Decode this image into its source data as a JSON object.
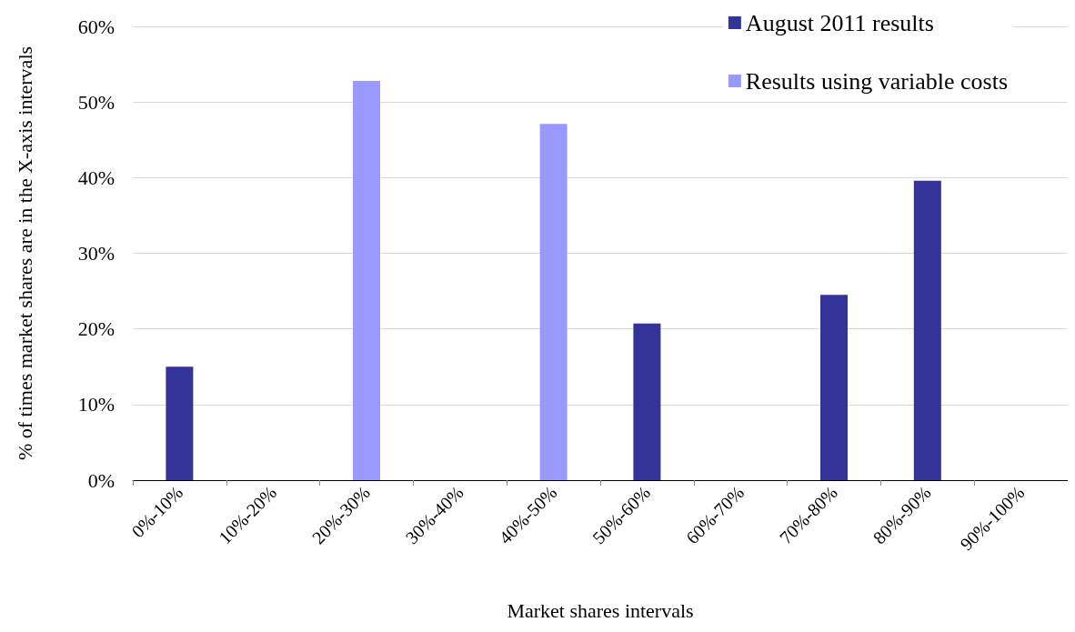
{
  "chart_data": {
    "type": "bar",
    "xlabel": "Market shares intervals",
    "ylabel": "% of times market shares are in the X-axis intervals",
    "categories": [
      "0%-10%",
      "10%-20%",
      "20%-30%",
      "30%-40%",
      "40%-50%",
      "50%-60%",
      "60%-70%",
      "70%-80%",
      "80%-90%",
      "90%-100%"
    ],
    "series": [
      {
        "name": "August 2011 results",
        "color": "#333399",
        "values": [
          15,
          null,
          null,
          null,
          null,
          20.7,
          null,
          24.5,
          39.6,
          null
        ]
      },
      {
        "name": "Results using variable costs",
        "color": "#9999ff",
        "values": [
          null,
          null,
          52.8,
          null,
          47.1,
          null,
          null,
          null,
          null,
          null
        ]
      }
    ],
    "ylim": [
      0,
      60
    ],
    "yticks": [
      {
        "value": 0,
        "label": "0%"
      },
      {
        "value": 10,
        "label": "10%"
      },
      {
        "value": 20,
        "label": "20%"
      },
      {
        "value": 30,
        "label": "30%"
      },
      {
        "value": 40,
        "label": "40%"
      },
      {
        "value": 50,
        "label": "50%"
      },
      {
        "value": 60,
        "label": "60%"
      }
    ],
    "grid": "y",
    "legend": "top right"
  }
}
